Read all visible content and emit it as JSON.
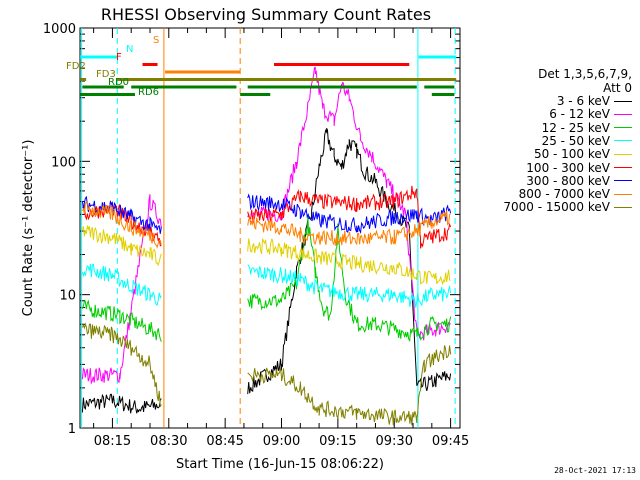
{
  "chart_data": {
    "type": "line",
    "title": "RHESSI Observing Summary Count Rates",
    "xlabel": "Start Time (16-Jun-15 08:06:22)",
    "ylabel": "Count Rate (s⁻¹ detector⁻¹)",
    "yscale": "log",
    "ylim": [
      1,
      1000
    ],
    "xlim_minutes": [
      486.37,
      587.5
    ],
    "x_ticks": [
      "08:15",
      "08:30",
      "08:45",
      "09:00",
      "09:15",
      "09:30",
      "09:45"
    ],
    "y_ticks": [
      "1",
      "10",
      "100",
      "1000"
    ],
    "grid": false,
    "legend_header": [
      "Det 1,3,5,6,7,9,",
      "Att 0"
    ],
    "legend_position": "right",
    "series": [
      {
        "name": "3 - 6 keV",
        "color": "#000000",
        "data": [
          [
            487,
            1.5
          ],
          [
            495,
            1.6
          ],
          [
            502,
            1.4
          ],
          [
            508,
            1.5
          ],
          [
            531,
            2
          ],
          [
            540,
            3
          ],
          [
            544,
            15
          ],
          [
            546,
            25
          ],
          [
            548,
            40
          ],
          [
            550,
            90
          ],
          [
            552,
            160
          ],
          [
            554,
            110
          ],
          [
            556,
            90
          ],
          [
            558,
            140
          ],
          [
            560,
            120
          ],
          [
            562,
            85
          ],
          [
            565,
            70
          ],
          [
            568,
            50
          ],
          [
            571,
            40
          ],
          [
            574,
            30
          ],
          [
            576,
            2
          ],
          [
            580,
            2.2
          ],
          [
            585,
            2.5
          ]
        ]
      },
      {
        "name": "6 - 12 keV",
        "color": "#ff00ff",
        "data": [
          [
            487,
            2.5
          ],
          [
            497,
            2.5
          ],
          [
            505,
            50
          ],
          [
            508,
            35
          ],
          [
            531,
            40
          ],
          [
            540,
            40
          ],
          [
            544,
            100
          ],
          [
            547,
            250
          ],
          [
            549,
            480
          ],
          [
            551,
            250
          ],
          [
            554,
            200
          ],
          [
            556,
            380
          ],
          [
            558,
            300
          ],
          [
            561,
            150
          ],
          [
            564,
            110
          ],
          [
            568,
            70
          ],
          [
            573,
            40
          ],
          [
            576,
            5
          ],
          [
            581,
            5.5
          ],
          [
            585,
            6
          ]
        ]
      },
      {
        "name": "12 - 25 keV",
        "color": "#00cc00",
        "data": [
          [
            487,
            8
          ],
          [
            497,
            7
          ],
          [
            508,
            5
          ],
          [
            531,
            9
          ],
          [
            540,
            9
          ],
          [
            544,
            12
          ],
          [
            547,
            35
          ],
          [
            549,
            15
          ],
          [
            551,
            8
          ],
          [
            553,
            7
          ],
          [
            555,
            30
          ],
          [
            557,
            10
          ],
          [
            560,
            6
          ],
          [
            565,
            6
          ],
          [
            576,
            5
          ],
          [
            580,
            6
          ],
          [
            585,
            6
          ]
        ]
      },
      {
        "name": "25 - 50 keV",
        "color": "#00ffff",
        "data": [
          [
            487,
            16
          ],
          [
            495,
            14
          ],
          [
            499,
            12
          ],
          [
            505,
            10
          ],
          [
            508,
            9
          ],
          [
            531,
            15
          ],
          [
            540,
            14
          ],
          [
            545,
            13
          ],
          [
            550,
            11
          ],
          [
            560,
            10
          ],
          [
            570,
            10
          ],
          [
            576,
            9
          ],
          [
            580,
            10
          ],
          [
            585,
            10
          ]
        ]
      },
      {
        "name": "50 - 100 keV",
        "color": "#e0d000",
        "data": [
          [
            487,
            30
          ],
          [
            495,
            27
          ],
          [
            500,
            22
          ],
          [
            505,
            20
          ],
          [
            508,
            18
          ],
          [
            531,
            24
          ],
          [
            540,
            22
          ],
          [
            550,
            19
          ],
          [
            560,
            17
          ],
          [
            570,
            16
          ],
          [
            576,
            14
          ],
          [
            580,
            13
          ],
          [
            585,
            14
          ]
        ]
      },
      {
        "name": "100 - 300 keV",
        "color": "#ff0000",
        "data": [
          [
            487,
            40
          ],
          [
            495,
            45
          ],
          [
            500,
            35
          ],
          [
            505,
            30
          ],
          [
            508,
            25
          ],
          [
            531,
            38
          ],
          [
            540,
            40
          ],
          [
            545,
            55
          ],
          [
            550,
            50
          ],
          [
            560,
            48
          ],
          [
            570,
            50
          ],
          [
            576,
            60
          ],
          [
            577,
            25
          ],
          [
            580,
            27
          ],
          [
            585,
            30
          ]
        ]
      },
      {
        "name": "300 - 800 keV",
        "color": "#0000ff",
        "data": [
          [
            487,
            48
          ],
          [
            495,
            45
          ],
          [
            500,
            38
          ],
          [
            505,
            33
          ],
          [
            508,
            30
          ],
          [
            531,
            50
          ],
          [
            540,
            48
          ],
          [
            545,
            42
          ],
          [
            550,
            36
          ],
          [
            560,
            33
          ],
          [
            570,
            38
          ],
          [
            576,
            40
          ],
          [
            580,
            36
          ],
          [
            585,
            42
          ]
        ]
      },
      {
        "name": "800 - 7000 keV",
        "color": "#ff8000",
        "data": [
          [
            487,
            45
          ],
          [
            495,
            40
          ],
          [
            500,
            32
          ],
          [
            505,
            28
          ],
          [
            508,
            25
          ],
          [
            531,
            35
          ],
          [
            540,
            32
          ],
          [
            545,
            28
          ],
          [
            550,
            27
          ],
          [
            560,
            26
          ],
          [
            570,
            27
          ],
          [
            576,
            30
          ],
          [
            580,
            35
          ],
          [
            585,
            38
          ]
        ]
      },
      {
        "name": "7000 - 15000 keV",
        "color": "#808000",
        "data": [
          [
            487,
            5.5
          ],
          [
            495,
            5
          ],
          [
            500,
            4
          ],
          [
            505,
            3
          ],
          [
            508,
            1.5
          ],
          [
            531,
            2.5
          ],
          [
            540,
            2.5
          ],
          [
            545,
            2
          ],
          [
            550,
            1.4
          ],
          [
            560,
            1.3
          ],
          [
            570,
            1.2
          ],
          [
            576,
            1.2
          ],
          [
            578,
            3
          ],
          [
            585,
            4
          ]
        ]
      }
    ],
    "flag_markers": [
      {
        "label": "N",
        "color": "#00ffff"
      },
      {
        "label": "F",
        "color": "#ff0000"
      },
      {
        "label": "S",
        "color": "#ff8000"
      },
      {
        "label": "FD2",
        "color": "#808000"
      },
      {
        "label": "FD3",
        "color": "#808000"
      },
      {
        "label": "RD0",
        "color": "#008000"
      },
      {
        "label": "RD6",
        "color": "#008000"
      }
    ],
    "flag_bars": [
      {
        "color": "#00ffff",
        "y": 0.9,
        "x": [
          [
            486.4,
            496.5
          ],
          [
            576.5,
            586.5
          ]
        ]
      },
      {
        "color": "#ff0000",
        "y": 0.85,
        "x": [
          [
            503,
            507
          ],
          [
            538,
            574
          ]
        ]
      },
      {
        "color": "#ff8000",
        "y": 0.8,
        "x": [
          [
            509,
            529
          ]
        ]
      },
      {
        "color": "#808000",
        "y": 0.75,
        "x": [
          [
            486.4,
            488
          ],
          [
            496,
            586.5
          ]
        ]
      },
      {
        "color": "#008000",
        "y": 0.7,
        "x": [
          [
            487,
            498
          ],
          [
            500,
            528
          ],
          [
            531,
            576
          ],
          [
            578,
            586
          ]
        ]
      },
      {
        "color": "#008000",
        "y": 0.65,
        "x": [
          [
            486.4,
            501
          ],
          [
            529,
            537
          ],
          [
            580,
            586
          ]
        ]
      }
    ],
    "vlines": [
      {
        "x": 486.8,
        "color": "#00ffff",
        "style": "solid"
      },
      {
        "x": 496.3,
        "color": "#00ffff",
        "style": "dashed"
      },
      {
        "x": 508.7,
        "color": "#ff8000",
        "style": "solid"
      },
      {
        "x": 529.0,
        "color": "#ff8000",
        "style": "dashed"
      },
      {
        "x": 576.3,
        "color": "#00ffff",
        "style": "solid"
      },
      {
        "x": 586.2,
        "color": "#00ffff",
        "style": "dashed"
      }
    ]
  },
  "footer_timestamp": "28-Oct-2021 17:13"
}
